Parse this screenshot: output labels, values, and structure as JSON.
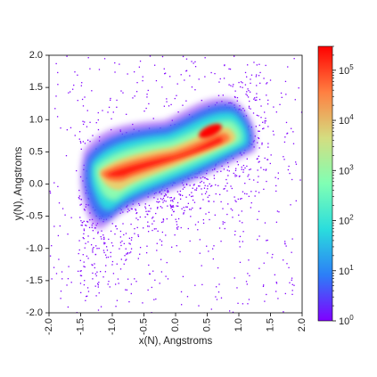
{
  "chart_data": {
    "type": "heatmap",
    "subtype": "2d-histogram-log-colored",
    "xlabel": "x(N), Angstroms",
    "ylabel": "y(N), Angstroms",
    "xlim": [
      -2.0,
      2.0
    ],
    "ylim": [
      -2.0,
      2.0
    ],
    "xticks": [
      "-2.0",
      "-1.5",
      "-1.0",
      "-0.5",
      "0.0",
      "0.5",
      "1.0",
      "1.5",
      "2.0"
    ],
    "yticks": [
      "2.0",
      "1.5",
      "1.0",
      "0.5",
      "0.0",
      "-0.5",
      "-1.0",
      "-1.5",
      "-2.0"
    ],
    "tick_values": [
      -2.0,
      -1.5,
      -1.0,
      -0.5,
      0.0,
      0.5,
      1.0,
      1.5,
      2.0
    ],
    "xtick_rotation": "vertical",
    "grid": false,
    "colormap": "rainbow",
    "colorbar": {
      "scale": "log",
      "range": [
        1,
        300000
      ],
      "ticks": [
        {
          "base": "10",
          "exp": "0",
          "value": 1
        },
        {
          "base": "10",
          "exp": "1",
          "value": 10
        },
        {
          "base": "10",
          "exp": "2",
          "value": 100
        },
        {
          "base": "10",
          "exp": "3",
          "value": 1000
        },
        {
          "base": "10",
          "exp": "4",
          "value": 10000
        },
        {
          "base": "10",
          "exp": "5",
          "value": 100000
        }
      ],
      "colors": [
        "#8000ff",
        "#2c7ef7",
        "#2adddd",
        "#80ffb4",
        "#d4dd80",
        "#ff7f41",
        "#ff0000"
      ]
    },
    "density_ridge": {
      "description_points": [
        [
          -1.25,
          0.12
        ],
        [
          -1.0,
          0.22
        ],
        [
          -0.5,
          0.32
        ],
        [
          0.0,
          0.45
        ],
        [
          0.5,
          0.68
        ],
        [
          0.8,
          0.88
        ],
        [
          1.1,
          1.0
        ]
      ],
      "peak": [
        0.8,
        0.9
      ]
    }
  }
}
